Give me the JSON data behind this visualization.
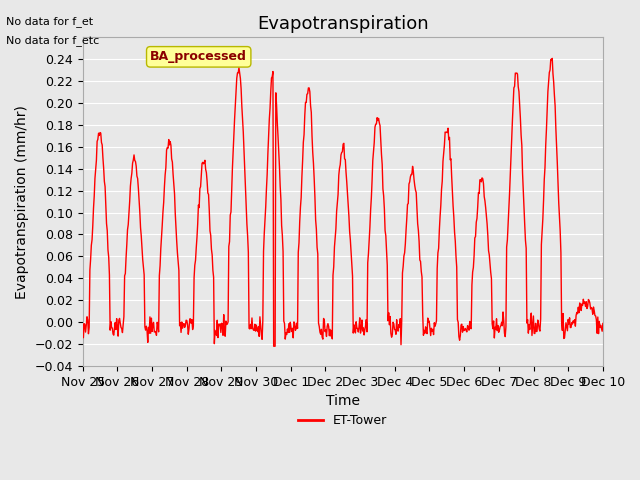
{
  "title": "Evapotranspiration",
  "ylabel": "Evapotranspiration (mm/hr)",
  "xlabel": "Time",
  "ylim": [
    -0.04,
    0.26
  ],
  "yticks": [
    -0.04,
    -0.02,
    0.0,
    0.02,
    0.04,
    0.06,
    0.08,
    0.1,
    0.12,
    0.14,
    0.16,
    0.18,
    0.2,
    0.22,
    0.24
  ],
  "line_color": "#ff0000",
  "line_width": 1.0,
  "background_color": "#e8e8e8",
  "plot_bg_color": "#e8e8e8",
  "legend_label": "ET-Tower",
  "legend_box_color": "#ffff99",
  "legend_box_edge": "#b8b800",
  "annotation_text": "BA_processed",
  "no_data_text1": "No data for f_et",
  "no_data_text2": "No data for f_etc",
  "title_fontsize": 13,
  "axis_fontsize": 10,
  "tick_fontsize": 9,
  "x_tick_labels": [
    "Nov 25",
    "Nov 26",
    "Nov 27",
    "Nov 28",
    "Nov 29",
    "Nov 30",
    "Dec 1",
    "Dec 2",
    "Dec 3",
    "Dec 4",
    "Dec 5",
    "Dec 6",
    "Dec 7",
    "Dec 8",
    "Dec 9",
    "Dec 10"
  ],
  "x_tick_positions": [
    0,
    1,
    2,
    3,
    4,
    5,
    6,
    7,
    8,
    9,
    10,
    11,
    12,
    13,
    14,
    15
  ]
}
